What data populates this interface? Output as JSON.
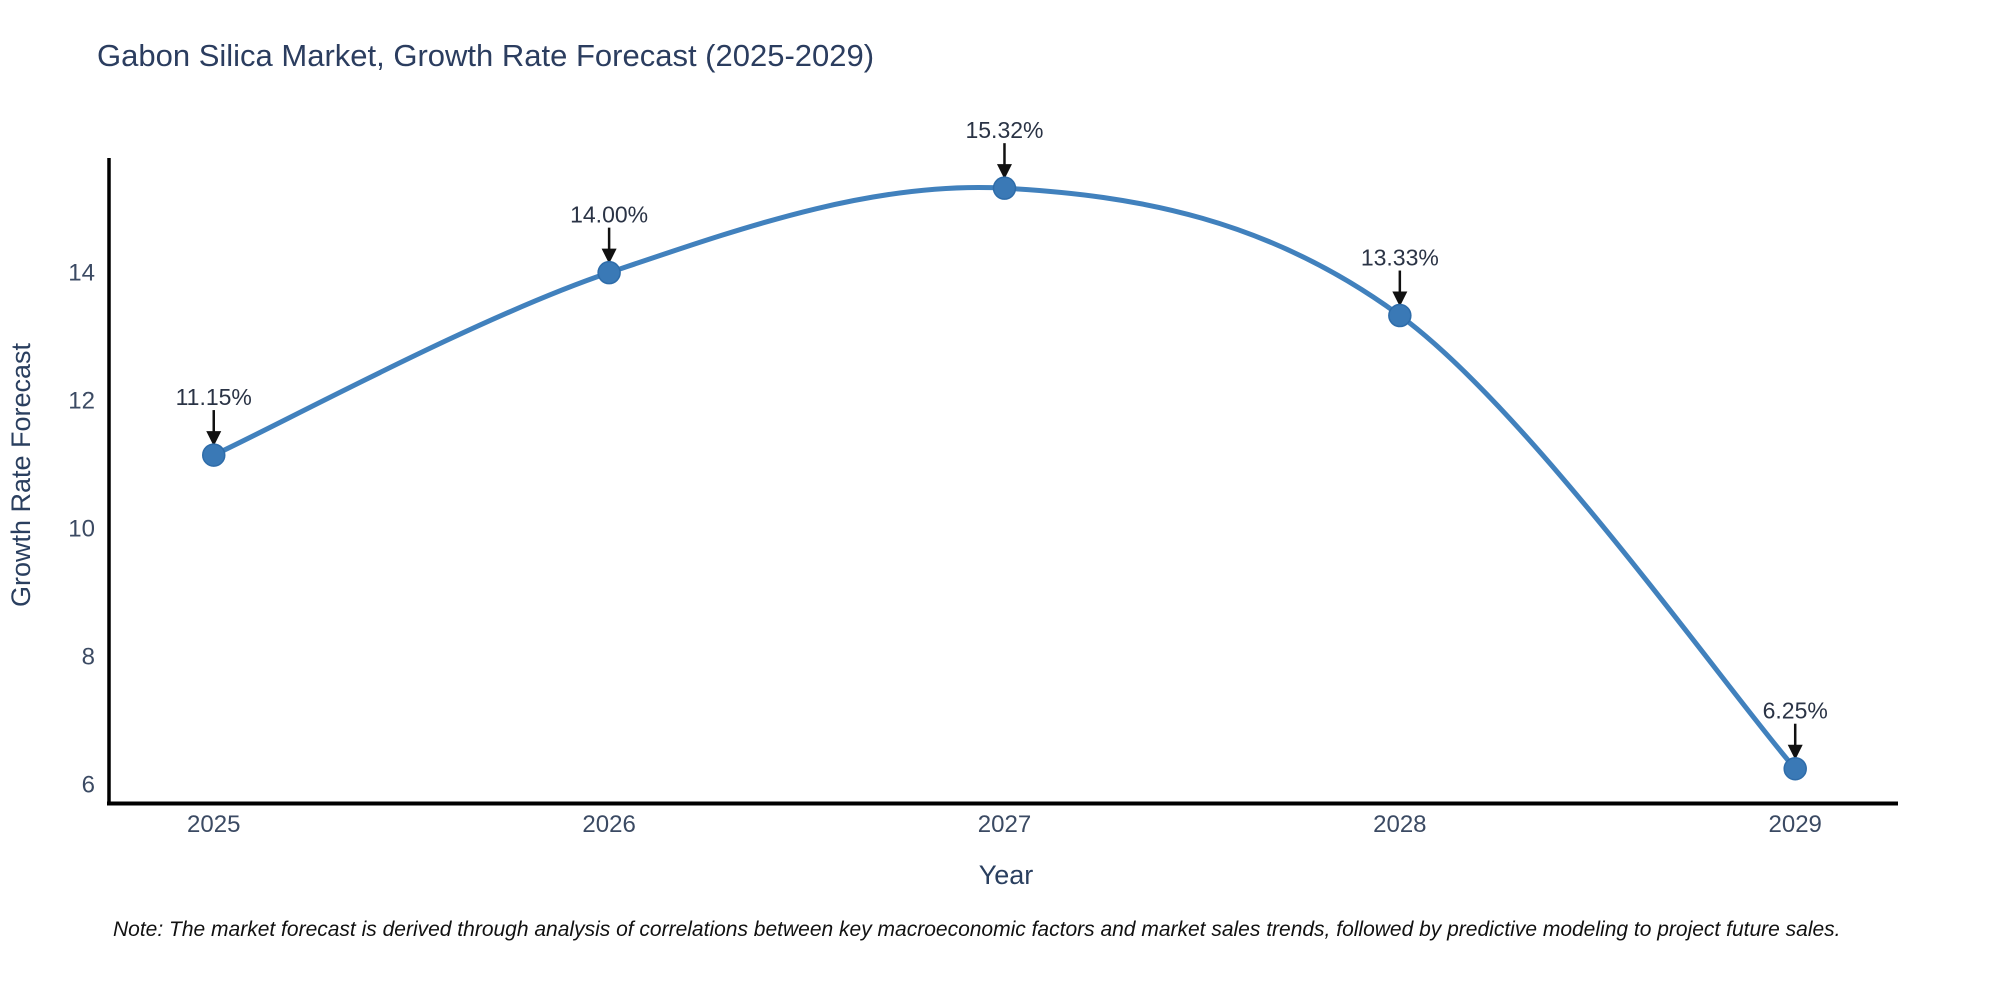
{
  "title": "Gabon Silica Market, Growth Rate Forecast (2025-2029)",
  "note": "Note: The market forecast is derived through analysis of correlations between key macroeconomic factors and market sales trends, followed by predictive modeling to project future sales.",
  "chart_data": {
    "type": "line",
    "title": "Gabon Silica Market, Growth Rate Forecast (2025-2029)",
    "xlabel": "Year",
    "ylabel": "Growth Rate Forecast",
    "categories": [
      "2025",
      "2026",
      "2027",
      "2028",
      "2029"
    ],
    "x": [
      2025,
      2026,
      2027,
      2028,
      2029
    ],
    "series": [
      {
        "name": "Growth Rate Forecast",
        "values": [
          11.15,
          14.0,
          15.32,
          13.33,
          6.25
        ],
        "point_labels": [
          "11.15%",
          "14.00%",
          "15.32%",
          "13.33%",
          "6.25%"
        ]
      }
    ],
    "line_shape": "spline",
    "markers": true,
    "grid": false,
    "legend_position": "none",
    "xlim": [
      2024.73,
      2029.26
    ],
    "ylim": [
      5.73,
      15.76
    ],
    "yticks": [
      6,
      8,
      10,
      12,
      14
    ],
    "annotation_arrows": true,
    "colors": {
      "line": "#4181bd",
      "marker": "#3a79b6",
      "marker_edge": "#2e6ca9",
      "axis_line": "#000000",
      "title_text": "#2b3d5f",
      "axis_text": "#2a3f5f",
      "tick_text": "#3b4a63",
      "annotation_text": "#2a3345",
      "arrow": "#111111",
      "background": "#ffffff"
    }
  }
}
